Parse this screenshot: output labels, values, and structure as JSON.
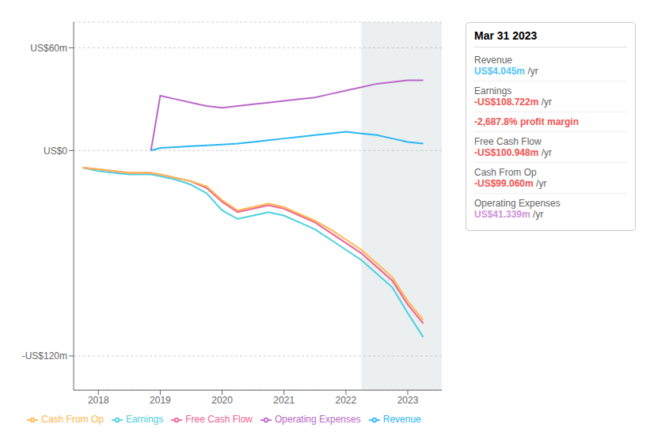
{
  "chart_data": {
    "type": "line",
    "title": "Mar 31 2023",
    "x": [
      2017.75,
      2018.0,
      2018.25,
      2018.5,
      2018.75,
      2018.85,
      2019.0,
      2019.25,
      2019.5,
      2019.75,
      2020.0,
      2020.25,
      2020.5,
      2020.75,
      2021.0,
      2021.25,
      2021.5,
      2021.75,
      2022.0,
      2022.25,
      2022.5,
      2022.75,
      2023.0,
      2023.25
    ],
    "series": [
      {
        "name": "Revenue",
        "color": "#29b6f6",
        "values": [
          null,
          null,
          null,
          null,
          null,
          0,
          1.5,
          2,
          2.5,
          3,
          3.5,
          4,
          5,
          6,
          7,
          8,
          9,
          10,
          11,
          10,
          9,
          7,
          5,
          4
        ]
      },
      {
        "name": "Earnings",
        "color": "#4dd0e1",
        "values": [
          -10,
          -12,
          -13,
          -14,
          -14,
          -14,
          -15,
          -17,
          -20,
          -25,
          -35,
          -40,
          -38,
          -36,
          -38,
          -42,
          -46,
          -52,
          -58,
          -64,
          -72,
          -80,
          -95,
          -109
        ]
      },
      {
        "name": "Free Cash Flow",
        "color": "#f06292",
        "values": [
          -10,
          -11,
          -12,
          -13,
          -13,
          -13,
          -14,
          -16,
          -18,
          -22,
          -30,
          -36,
          -34,
          -32,
          -34,
          -38,
          -42,
          -48,
          -54,
          -60,
          -68,
          -76,
          -90,
          -101
        ]
      },
      {
        "name": "Cash From Op",
        "color": "#ffb74d",
        "values": [
          -10,
          -11,
          -12,
          -13,
          -13,
          -13,
          -14,
          -16,
          -18,
          -21,
          -29,
          -35,
          -33,
          -31,
          -33,
          -37,
          -41,
          -46,
          -52,
          -58,
          -66,
          -74,
          -88,
          -99
        ]
      },
      {
        "name": "Operating Expenses",
        "color": "#ba68c8",
        "values": [
          null,
          null,
          null,
          null,
          null,
          0,
          32,
          30,
          28,
          26,
          25,
          26,
          27,
          28,
          29,
          30,
          31,
          33,
          35,
          37,
          39,
          40,
          41,
          41
        ]
      }
    ],
    "xlim": [
      2017.6,
      2023.55
    ],
    "xticks": [
      2018,
      2019,
      2020,
      2021,
      2022,
      2023
    ],
    "ylim": [
      -140,
      75
    ],
    "yticks": [
      {
        "value": 60,
        "label": "US$60m"
      },
      {
        "value": 0,
        "label": "US$0"
      },
      {
        "value": -120,
        "label": "-US$120m"
      }
    ],
    "grid": true,
    "legend": "bottom",
    "highlight_x": [
      2022.25,
      2023.55
    ],
    "annotations": [
      {
        "label": "Revenue",
        "value": "US$4.045m",
        "unit": "/yr",
        "color": "#4fc3f7"
      },
      {
        "label": "Earnings",
        "value": "-US$108.722m",
        "unit": "/yr",
        "color": "#ef5350"
      },
      {
        "value": "-2,687.8% profit margin",
        "color": "#ef5350"
      },
      {
        "label": "Free Cash Flow",
        "value": "-US$100.948m",
        "unit": "/yr",
        "color": "#ef5350"
      },
      {
        "label": "Cash From Op",
        "value": "-US$99.060m",
        "unit": "/yr",
        "color": "#ef5350"
      },
      {
        "label": "Operating Expenses",
        "value": "US$41.339m",
        "unit": "/yr",
        "color": "#ce93d8"
      }
    ]
  }
}
